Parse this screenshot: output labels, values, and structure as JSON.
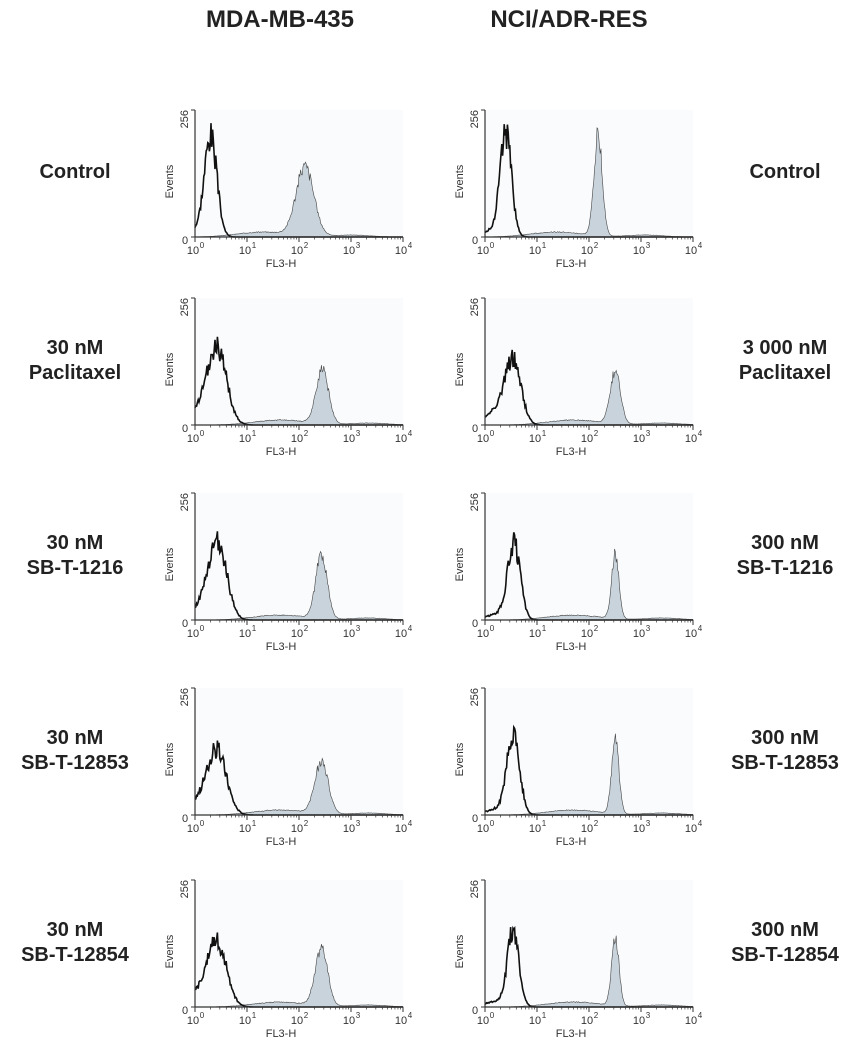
{
  "column_headers": [
    "MDA-MB-435",
    "NCI/ADR-RES"
  ],
  "row_labels_left": [
    [
      "Control"
    ],
    [
      "30 nM",
      "Paclitaxel"
    ],
    [
      "30 nM",
      "SB-T-1216"
    ],
    [
      "30 nM",
      "SB-T-12853"
    ],
    [
      "30 nM",
      "SB-T-12854"
    ]
  ],
  "row_labels_right": [
    [
      "Control"
    ],
    [
      "3 000 nM",
      "Paclitaxel"
    ],
    [
      "300 nM",
      "SB-T-1216"
    ],
    [
      "300 nM",
      "SB-T-12853"
    ],
    [
      "300 nM",
      "SB-T-12854"
    ]
  ],
  "colors": {
    "filled": "#c8d3dc",
    "axis": "#333333",
    "line": "#111111"
  },
  "chart_data": [
    {
      "type": "area",
      "panel": "MDA-MB-435 / Control",
      "xlabel": "FL3-H",
      "ylabel": "Events",
      "xscale": "log",
      "xlim": [
        1,
        10000
      ],
      "ylim": [
        0,
        256
      ],
      "xticks": [
        "10",
        "10",
        "10",
        "10",
        "10"
      ],
      "xtick_exponents": [
        "0",
        "1",
        "2",
        "3",
        "4"
      ],
      "yticks": [
        "0",
        "256"
      ],
      "unfilled_peak": {
        "center": 2,
        "height": 200,
        "width_decades": 0.12
      },
      "filled_peak": {
        "center": 130,
        "height": 140,
        "width_decades": 0.17
      }
    },
    {
      "type": "area",
      "panel": "NCI/ADR-RES / Control",
      "xlabel": "FL3-H",
      "ylabel": "Events",
      "xscale": "log",
      "xlim": [
        1,
        10000
      ],
      "ylim": [
        0,
        256
      ],
      "xticks": [
        "10",
        "10",
        "10",
        "10",
        "10"
      ],
      "xtick_exponents": [
        "0",
        "1",
        "2",
        "3",
        "4"
      ],
      "yticks": [
        "0",
        "256"
      ],
      "unfilled_peak": {
        "center": 2.5,
        "height": 205,
        "width_decades": 0.11
      },
      "filled_peak": {
        "center": 150,
        "height": 205,
        "width_decades": 0.08
      }
    },
    {
      "type": "area",
      "panel": "MDA-MB-435 / 30 nM Paclitaxel",
      "xlabel": "FL3-H",
      "ylabel": "Events",
      "xscale": "log",
      "xlim": [
        1,
        10000
      ],
      "ylim": [
        0,
        256
      ],
      "xticks": [
        "10",
        "10",
        "10",
        "10",
        "10"
      ],
      "xtick_exponents": [
        "0",
        "1",
        "2",
        "3",
        "4"
      ],
      "yticks": [
        "0",
        "256"
      ],
      "unfilled_peak": {
        "center": 2.7,
        "height": 145,
        "width_decades": 0.18
      },
      "filled_peak": {
        "center": 280,
        "height": 110,
        "width_decades": 0.12
      }
    },
    {
      "type": "area",
      "panel": "NCI/ADR-RES / 3 000 nM Paclitaxel",
      "xlabel": "FL3-H",
      "ylabel": "Events",
      "xscale": "log",
      "xlim": [
        1,
        10000
      ],
      "ylim": [
        0,
        256
      ],
      "xticks": [
        "10",
        "10",
        "10",
        "10",
        "10"
      ],
      "xtick_exponents": [
        "0",
        "1",
        "2",
        "3",
        "4"
      ],
      "yticks": [
        "0",
        "256"
      ],
      "unfilled_peak": {
        "center": 3.5,
        "height": 120,
        "width_decades": 0.15
      },
      "filled_peak": {
        "center": 320,
        "height": 105,
        "width_decades": 0.1
      }
    },
    {
      "type": "area",
      "panel": "MDA-MB-435 / 30 nM SB-T-1216",
      "xlabel": "FL3-H",
      "ylabel": "Events",
      "xscale": "log",
      "xlim": [
        1,
        10000
      ],
      "ylim": [
        0,
        256
      ],
      "xticks": [
        "10",
        "10",
        "10",
        "10",
        "10"
      ],
      "xtick_exponents": [
        "0",
        "1",
        "2",
        "3",
        "4"
      ],
      "yticks": [
        "0",
        "256"
      ],
      "unfilled_peak": {
        "center": 2.8,
        "height": 145,
        "width_decades": 0.17
      },
      "filled_peak": {
        "center": 270,
        "height": 130,
        "width_decades": 0.11
      }
    },
    {
      "type": "area",
      "panel": "NCI/ADR-RES / 300 nM SB-T-1216",
      "xlabel": "FL3-H",
      "ylabel": "Events",
      "xscale": "log",
      "xlim": [
        1,
        10000
      ],
      "ylim": [
        0,
        256
      ],
      "xticks": [
        "10",
        "10",
        "10",
        "10",
        "10"
      ],
      "xtick_exponents": [
        "0",
        "1",
        "2",
        "3",
        "4"
      ],
      "yticks": [
        "0",
        "256"
      ],
      "unfilled_peak": {
        "center": 3.6,
        "height": 150,
        "width_decades": 0.12
      },
      "filled_peak": {
        "center": 320,
        "height": 130,
        "width_decades": 0.07
      }
    },
    {
      "type": "area",
      "panel": "MDA-MB-435 / 30 nM SB-T-12853",
      "xlabel": "FL3-H",
      "ylabel": "Events",
      "xscale": "log",
      "xlim": [
        1,
        10000
      ],
      "ylim": [
        0,
        256
      ],
      "xticks": [
        "10",
        "10",
        "10",
        "10",
        "10"
      ],
      "xtick_exponents": [
        "0",
        "1",
        "2",
        "3",
        "4"
      ],
      "yticks": [
        "0",
        "256"
      ],
      "unfilled_peak": {
        "center": 2.7,
        "height": 120,
        "width_decades": 0.18
      },
      "filled_peak": {
        "center": 270,
        "height": 105,
        "width_decades": 0.13
      }
    },
    {
      "type": "area",
      "panel": "NCI/ADR-RES / 300 nM SB-T-12853",
      "xlabel": "FL3-H",
      "ylabel": "Events",
      "xscale": "log",
      "xlim": [
        1,
        10000
      ],
      "ylim": [
        0,
        256
      ],
      "xticks": [
        "10",
        "10",
        "10",
        "10",
        "10"
      ],
      "xtick_exponents": [
        "0",
        "1",
        "2",
        "3",
        "4"
      ],
      "yticks": [
        "0",
        "256"
      ],
      "unfilled_peak": {
        "center": 3.5,
        "height": 160,
        "width_decades": 0.12
      },
      "filled_peak": {
        "center": 320,
        "height": 150,
        "width_decades": 0.07
      }
    },
    {
      "type": "area",
      "panel": "MDA-MB-435 / 30 nM SB-T-12854",
      "xlabel": "FL3-H",
      "ylabel": "Events",
      "xscale": "log",
      "xlim": [
        1,
        10000
      ],
      "ylim": [
        0,
        256
      ],
      "xticks": [
        "10",
        "10",
        "10",
        "10",
        "10"
      ],
      "xtick_exponents": [
        "0",
        "1",
        "2",
        "3",
        "4"
      ],
      "yticks": [
        "0",
        "256"
      ],
      "unfilled_peak": {
        "center": 2.7,
        "height": 120,
        "width_decades": 0.18
      },
      "filled_peak": {
        "center": 270,
        "height": 115,
        "width_decades": 0.12
      }
    },
    {
      "type": "area",
      "panel": "NCI/ADR-RES / 300 nM SB-T-12854",
      "xlabel": "FL3-H",
      "ylabel": "Events",
      "xscale": "log",
      "xlim": [
        1,
        10000
      ],
      "ylim": [
        0,
        256
      ],
      "xticks": [
        "10",
        "10",
        "10",
        "10",
        "10"
      ],
      "xtick_exponents": [
        "0",
        "1",
        "2",
        "3",
        "4"
      ],
      "yticks": [
        "0",
        "256"
      ],
      "unfilled_peak": {
        "center": 3.5,
        "height": 150,
        "width_decades": 0.11
      },
      "filled_peak": {
        "center": 320,
        "height": 140,
        "width_decades": 0.07
      }
    }
  ]
}
